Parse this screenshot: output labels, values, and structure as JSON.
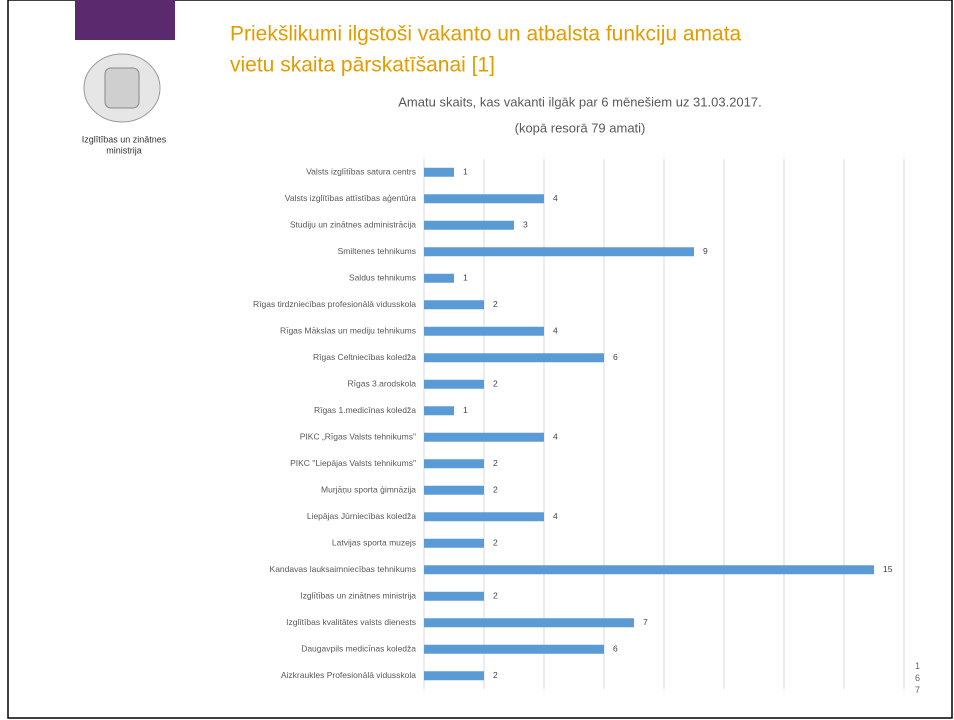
{
  "slide": {
    "heading": [
      "Priekšlikumi ilgstoši vakanto un  atbalsta funkciju amata",
      "vietu skaita pārskatīšanai [1]"
    ],
    "logo_text": [
      "Izglītības un zinātnes",
      "ministrija"
    ],
    "page_number": "167"
  },
  "chart_data": {
    "type": "hbar",
    "title": "Amatu skaits, kas vakanti ilgāk par 6 mēnešiem uz 31.03.2017.",
    "subtitle": "(kopā resorā 79 amati)",
    "categories": [
      "Valsts izglītības satura centrs",
      "Valsts izglītības attīstības aģentūra",
      "Studiju un zinātnes administrācija",
      "Smiltenes tehnikums",
      "Saldus tehnikums",
      "Rīgas tirdzniecības profesionālā vidusskola",
      "Rīgas Mākslas un mediju tehnikums",
      "Rīgas Celtniecības koledža",
      "Rīgas 3.arodskola",
      "Rīgas 1.medicīnas koledža",
      "PIKC „Rīgas Valsts tehnikums\"",
      "PIKC \"Liepājas Valsts tehnikums\"",
      "Murjāņu sporta ģimnāzija",
      "Liepājas Jūrniecības koledža",
      "Latvijas sporta muzejs",
      "Kandavas lauksaimniecības tehnikums",
      "Izglītības un zinātnes ministrija",
      "Izglītības kvalitātes valsts dienests",
      "Daugavpils medicīnas koledža",
      "Aizkraukles Profesionālā vidusskola"
    ],
    "values": [
      1,
      4,
      3,
      9,
      1,
      2,
      4,
      6,
      2,
      1,
      4,
      2,
      2,
      4,
      2,
      15,
      2,
      7,
      6,
      2
    ],
    "color": "#5b9bd5",
    "xlim": [
      0,
      16
    ],
    "xticks": [
      0,
      2,
      4,
      6,
      8,
      10,
      12,
      14,
      16
    ],
    "grid": true
  }
}
